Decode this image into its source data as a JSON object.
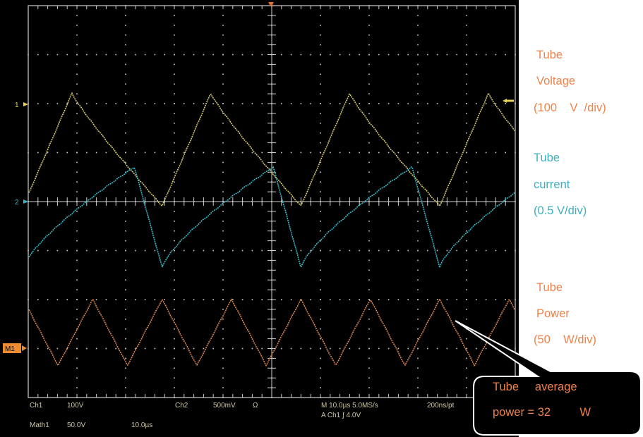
{
  "chart_data": {
    "type": "line",
    "instrument": "oscilloscope",
    "x_divisions": 10,
    "y_divisions": 8,
    "series": [
      {
        "name": "Tube Voltage",
        "color": "#d6c870",
        "period_div": 2.85,
        "phase_div": -0.1,
        "level_div": 1.06,
        "swing_div": 2.3,
        "shape": "skewed-triangle"
      },
      {
        "name": "Tube current",
        "color": "#3ab8c8",
        "period_div": 2.85,
        "phase_div": -0.1,
        "level_div": -0.32,
        "swing_div": 2.05,
        "shape": "sawtooth"
      },
      {
        "name": "Tube Power",
        "color": "#d8864e",
        "period_div": 1.425,
        "phase_div": -0.1,
        "level_div": -2.67,
        "swing_div": 1.35,
        "shape": "triangle"
      }
    ]
  },
  "markers": {
    "ch1": "1",
    "ch2": "2",
    "math": "M1"
  },
  "readout": {
    "ch1_label": "Ch1",
    "ch1_scale": "100V",
    "ch2_label": "Ch2",
    "ch2_scale": "500mV",
    "ch2_coupling": "Ω",
    "time_scale": "M 10.0µs 5.0MS/s",
    "resolution": "200ns/pt",
    "math_label": "Math1",
    "math_scale": "50.0V",
    "math_time": "10.0µs",
    "trigger": "A  Ch1  ∫  4.0V"
  },
  "annotations": {
    "voltage": {
      "line1": "Tube",
      "line2": "Voltage",
      "line3": "(100    V  /div)"
    },
    "current": {
      "line1": "Tube",
      "line2": "current",
      "line3": "(0.5 V/div)"
    },
    "power": {
      "line1": "Tube",
      "line2": "Power",
      "line3": "(50    W/div)"
    },
    "average": {
      "line1": "Tube     average",
      "line2": "power = 32         W"
    }
  },
  "colors": {
    "screen_bg": "#000000",
    "grid": "#cfcfcf",
    "voltage_trace": "#d6c870",
    "current_trace": "#3ab8c8",
    "power_trace": "#d8864e",
    "ch1_marker": "#e8d050",
    "ch2_marker": "#3ab8c8",
    "math_marker": "#f08c30"
  }
}
